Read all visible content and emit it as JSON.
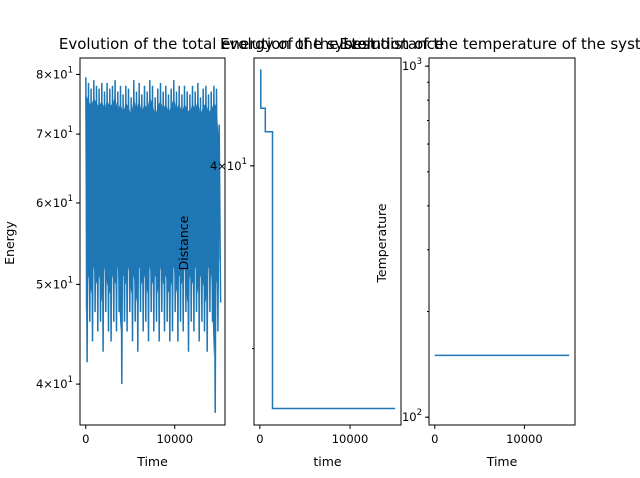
{
  "chart_data": [
    {
      "type": "line",
      "title": "Evolution of the total energy of the system",
      "xlabel": "Time",
      "ylabel": "Energy",
      "yscale": "log",
      "xlim": [
        -650,
        15650
      ],
      "ylim": [
        36.5,
        83
      ],
      "xticks": [
        {
          "value": 0,
          "label": "0"
        },
        {
          "value": 10000,
          "label": "10000"
        }
      ],
      "yticks": [
        {
          "value": 40,
          "mant": "4",
          "exp": "1"
        },
        {
          "value": 50,
          "mant": "5",
          "exp": "1"
        },
        {
          "value": 60,
          "mant": "6",
          "exp": "1"
        },
        {
          "value": 70,
          "mant": "7",
          "exp": "1"
        },
        {
          "value": 80,
          "mant": "8",
          "exp": "1"
        }
      ],
      "minor_yticks": [
        40,
        50,
        60,
        70,
        80
      ],
      "color": "#1f77b4",
      "series": [
        {
          "x": [
            0,
            300,
            600,
            900,
            1200,
            1500,
            1800,
            2100,
            2400,
            2700,
            3000,
            3300,
            3600,
            3900,
            4200,
            4500,
            4800,
            5100,
            5400,
            5700,
            6000,
            6300,
            6600,
            6900,
            7200,
            7500,
            7800,
            8100,
            8400,
            8700,
            9000,
            9300,
            9600,
            9900,
            10200,
            10500,
            10800,
            11100,
            11400,
            11700,
            12000,
            12300,
            12600,
            12900,
            13200,
            13500,
            13800,
            14100,
            14400,
            14700,
            15000
          ],
          "max": [
            79.5,
            78.5,
            77.5,
            79,
            78,
            77.5,
            78.5,
            77,
            78.5,
            77.5,
            78,
            79,
            77,
            78,
            76.5,
            78,
            77.5,
            76,
            79,
            77,
            78.5,
            76.5,
            78,
            77,
            79,
            78,
            76,
            77.5,
            78.5,
            77,
            78,
            76.5,
            77.5,
            79,
            77,
            78,
            76.5,
            78,
            77,
            76.5,
            78,
            77,
            78.5,
            76,
            77.5,
            78,
            76.5,
            77,
            78,
            77.5,
            71.5
          ],
          "min": [
            42,
            46,
            44,
            47,
            45,
            46,
            43,
            47,
            45,
            44,
            46,
            45,
            47,
            40,
            46,
            45,
            47,
            44,
            46,
            43,
            47,
            45,
            46,
            44,
            47,
            45,
            46,
            44,
            47,
            45,
            46,
            44,
            45,
            47,
            44,
            46,
            45,
            47,
            43,
            46,
            45,
            47,
            44,
            46,
            45,
            43,
            47,
            46,
            37.5,
            45,
            48
          ]
        }
      ]
    },
    {
      "type": "line",
      "title": "Evolution of the best distance",
      "xlabel": "time",
      "ylabel": "Distance",
      "yscale": "log",
      "xlim": [
        -650,
        15650
      ],
      "ylim": [
        26.6,
        47.4
      ],
      "xticks": [
        {
          "value": 0,
          "label": "0"
        },
        {
          "value": 10000,
          "label": "10000"
        }
      ],
      "yticks": [
        {
          "value": 40,
          "mant": "4",
          "exp": "1"
        }
      ],
      "minor_yticks": [
        30,
        40
      ],
      "color": "#1f77b4",
      "series": [
        {
          "x": [
            0,
            100,
            100,
            600,
            600,
            1400,
            1400,
            15000
          ],
          "y": [
            46.5,
            46.5,
            43.8,
            43.8,
            42.2,
            42.2,
            27.3,
            27.3
          ]
        }
      ]
    },
    {
      "type": "line",
      "title": "Evolution of the temperature of the system",
      "xlabel": "Time",
      "ylabel": "Temperature",
      "yscale": "log",
      "xlim": [
        -650,
        15650
      ],
      "ylim": [
        95,
        1055
      ],
      "xticks": [
        {
          "value": 0,
          "label": "0"
        },
        {
          "value": 10000,
          "label": "10000"
        }
      ],
      "yticks": [
        {
          "value": 100,
          "mant": "10",
          "exp": "2"
        },
        {
          "value": 1000,
          "mant": "10",
          "exp": "3"
        }
      ],
      "minor_yticks": [
        100,
        200,
        300,
        400,
        500,
        600,
        700,
        800,
        900,
        1000
      ],
      "color": "#1f77b4",
      "series": [
        {
          "x": [
            0,
            15000
          ],
          "y": [
            150,
            150
          ]
        }
      ]
    }
  ]
}
